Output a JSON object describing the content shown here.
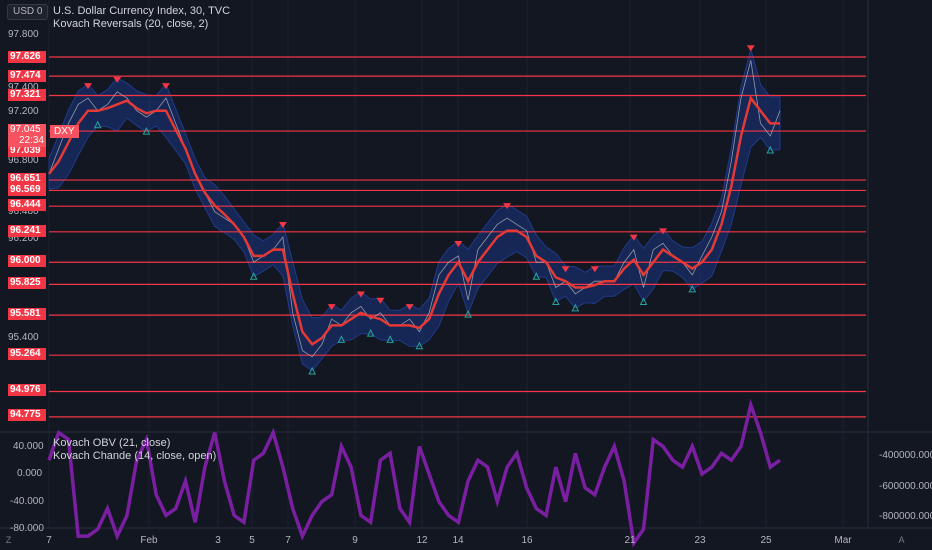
{
  "currency_button": "USD",
  "currency_value": "0",
  "legend": {
    "symbol": "U.S. Dollar Currency Index, 30, TVC",
    "indicator": "Kovach Reversals (20, close, 2)",
    "obv": "Kovach OBV (21, close)",
    "chande": "Kovach Chande (14, close, open)"
  },
  "price_ticks": [
    "97.800",
    "97.400",
    "97.200",
    "96.800",
    "96.480",
    "96.200",
    "95.400"
  ],
  "level_boxes": [
    "97.626",
    "97.474",
    "97.321",
    "97.039",
    "96.651",
    "96.569",
    "96.444",
    "96.241",
    "96.000",
    "95.825",
    "95.581",
    "95.264",
    "94.976",
    "94.775"
  ],
  "current": {
    "price": "97.045",
    "countdown": "22:34",
    "symbol": "DXY"
  },
  "oscillator_left": [
    "40.000",
    "0.000",
    "-40.000",
    "-80.000"
  ],
  "oscillator_right": [
    "-400000.000",
    "-600000.000",
    "-800000.000"
  ],
  "x_axis": [
    "7",
    "Feb",
    "3",
    "5",
    "7",
    "9",
    "12",
    "14",
    "16",
    "21",
    "23",
    "25",
    "Mar"
  ],
  "corner_left": "Z",
  "corner_right": "A",
  "colors": {
    "background": "#131722",
    "level_line": "#f23645",
    "band_fill": "#1c3580",
    "ma_line": "#e53935",
    "oscillator": "#7b1fa2",
    "signal_up": "#26a69a",
    "signal_down": "#f23645"
  },
  "chart_data": {
    "type": "line",
    "series": [
      {
        "values": [
          96.7,
          96.9,
          97.1,
          97.25,
          97.3,
          97.2,
          97.25,
          97.35,
          97.3,
          97.2,
          97.15,
          97.2,
          97.3,
          97.1,
          96.9,
          96.7,
          96.55,
          96.4,
          96.35,
          96.3,
          96.2,
          96.0,
          96.05,
          96.1,
          96.2,
          95.6,
          95.3,
          95.25,
          95.35,
          95.55,
          95.5,
          95.6,
          95.65,
          95.55,
          95.6,
          95.5,
          95.5,
          95.55,
          95.45,
          95.6,
          95.9,
          96.0,
          96.05,
          95.7,
          96.1,
          96.2,
          96.3,
          96.35,
          96.3,
          96.25,
          96.0,
          96.0,
          95.8,
          95.85,
          95.75,
          95.8,
          95.85,
          95.85,
          95.85,
          96.0,
          96.1,
          95.8,
          96.1,
          96.15,
          96.05,
          96.0,
          95.9,
          96.05,
          96.2,
          96.4,
          96.8,
          97.3,
          97.6,
          97.1,
          97.0,
          97.2
        ]
      },
      {
        "values": [
          96.7,
          96.8,
          96.95,
          97.1,
          97.2,
          97.2,
          97.22,
          97.25,
          97.28,
          97.22,
          97.18,
          97.2,
          97.2,
          97.05,
          96.9,
          96.7,
          96.55,
          96.45,
          96.38,
          96.3,
          96.2,
          96.05,
          96.05,
          96.1,
          96.1,
          95.75,
          95.45,
          95.35,
          95.4,
          95.5,
          95.5,
          95.55,
          95.6,
          95.57,
          95.55,
          95.5,
          95.5,
          95.5,
          95.48,
          95.55,
          95.75,
          95.9,
          96.0,
          95.85,
          96.0,
          96.1,
          96.2,
          96.25,
          96.25,
          96.2,
          96.05,
          96.0,
          95.88,
          95.85,
          95.8,
          95.8,
          95.82,
          95.85,
          95.85,
          95.95,
          96.02,
          95.9,
          96.0,
          96.1,
          96.05,
          96.0,
          95.95,
          96.0,
          96.1,
          96.3,
          96.6,
          97.0,
          97.3,
          97.2,
          97.1,
          97.1
        ]
      }
    ],
    "oscillator": [
      20,
      60,
      50,
      -90,
      -90,
      -80,
      -50,
      -90,
      -60,
      20,
      50,
      -30,
      -60,
      -50,
      -10,
      -70,
      10,
      60,
      -10,
      -60,
      -70,
      20,
      30,
      60,
      10,
      -50,
      -90,
      -60,
      -40,
      -30,
      40,
      10,
      -60,
      -70,
      20,
      30,
      -50,
      -70,
      40,
      0,
      -40,
      -60,
      -70,
      -10,
      20,
      10,
      -40,
      10,
      30,
      -20,
      -50,
      -60,
      10,
      -40,
      30,
      -20,
      -30,
      10,
      40,
      -10,
      -100,
      -80,
      50,
      40,
      20,
      10,
      40,
      0,
      10,
      30,
      20,
      40,
      100,
      60,
      10,
      20
    ]
  }
}
